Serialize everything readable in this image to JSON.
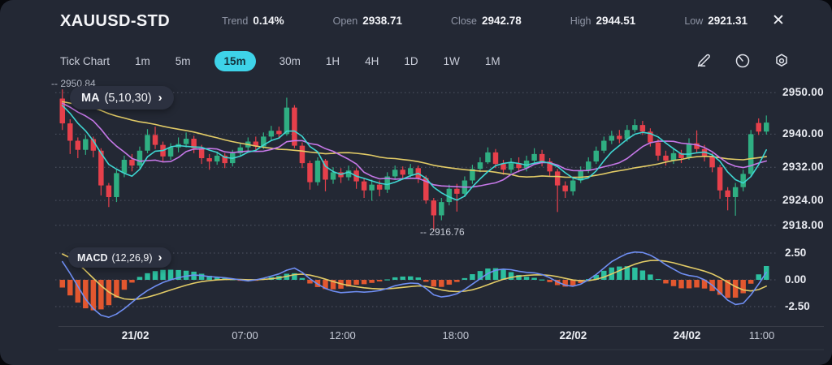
{
  "header": {
    "title": "XAUUSD-STD",
    "close_label": "✕",
    "stats": [
      {
        "label": "Trend",
        "value": "0.14%"
      },
      {
        "label": "Open",
        "value": "2938.71"
      },
      {
        "label": "Close",
        "value": "2942.78"
      },
      {
        "label": "High",
        "value": "2944.51"
      },
      {
        "label": "Low",
        "value": "2921.31"
      }
    ]
  },
  "toolbar": {
    "timeframes": [
      {
        "label": "Tick Chart",
        "active": false
      },
      {
        "label": "1m",
        "active": false
      },
      {
        "label": "5m",
        "active": false
      },
      {
        "label": "15m",
        "active": true
      },
      {
        "label": "30m",
        "active": false
      },
      {
        "label": "1H",
        "active": false
      },
      {
        "label": "4H",
        "active": false
      },
      {
        "label": "1D",
        "active": false
      },
      {
        "label": "1W",
        "active": false
      },
      {
        "label": "1M",
        "active": false
      }
    ],
    "chevron": "›"
  },
  "chart_data": {
    "type": "candlestick",
    "symbol": "XAUUSD-STD",
    "interval": "15m",
    "overlays": {
      "ma_label": "MA",
      "ma_params": "(5,10,30)",
      "ma_periods": [
        5,
        10,
        30
      ],
      "warmup_level": 2948
    },
    "annotations": {
      "high": "-- 2950.84",
      "low": "-- 2916.76"
    },
    "price_axis_ticks": [
      {
        "value": 2950,
        "label": "2950.00"
      },
      {
        "value": 2940,
        "label": "2940.00"
      },
      {
        "value": 2932,
        "label": "2932.00"
      },
      {
        "value": 2924,
        "label": "2924.00"
      },
      {
        "value": 2918,
        "label": "2918.00"
      }
    ],
    "time_axis_ticks": [
      {
        "label": "21/02",
        "pos": 0.108,
        "bold": true
      },
      {
        "label": "07:00",
        "pos": 0.262,
        "bold": false
      },
      {
        "label": "12:00",
        "pos": 0.399,
        "bold": false
      },
      {
        "label": "18:00",
        "pos": 0.558,
        "bold": false
      },
      {
        "label": "22/02",
        "pos": 0.723,
        "bold": true
      },
      {
        "label": "24/02",
        "pos": 0.883,
        "bold": true
      },
      {
        "label": "11:00",
        "pos": 0.988,
        "bold": false
      }
    ],
    "candles": [
      [
        2948.6,
        2950.8,
        2941.0,
        2942.6
      ],
      [
        2942.6,
        2943.6,
        2935.2,
        2938.4
      ],
      [
        2938.4,
        2939.2,
        2934.2,
        2936.2
      ],
      [
        2936.2,
        2939.8,
        2935.0,
        2938.8
      ],
      [
        2938.8,
        2939.4,
        2934.4,
        2936.0
      ],
      [
        2936.0,
        2936.6,
        2925.2,
        2927.6
      ],
      [
        2927.6,
        2928.2,
        2922.4,
        2924.8
      ],
      [
        2924.8,
        2931.4,
        2923.6,
        2930.6
      ],
      [
        2930.6,
        2934.8,
        2929.6,
        2933.8
      ],
      [
        2933.8,
        2935.2,
        2931.0,
        2932.4
      ],
      [
        2932.4,
        2937.0,
        2931.8,
        2936.0
      ],
      [
        2936.0,
        2941.2,
        2935.4,
        2939.8
      ],
      [
        2939.8,
        2941.8,
        2936.4,
        2937.4
      ],
      [
        2937.4,
        2938.2,
        2933.2,
        2934.6
      ],
      [
        2934.6,
        2937.8,
        2933.8,
        2936.8
      ],
      [
        2936.8,
        2939.2,
        2935.6,
        2937.6
      ],
      [
        2937.6,
        2940.4,
        2936.8,
        2938.9
      ],
      [
        2938.9,
        2939.6,
        2935.4,
        2936.6
      ],
      [
        2936.6,
        2937.4,
        2932.8,
        2934.2
      ],
      [
        2934.2,
        2935.2,
        2931.4,
        2933.4
      ],
      [
        2933.4,
        2935.8,
        2932.6,
        2934.8
      ],
      [
        2934.8,
        2935.4,
        2931.8,
        2933.0
      ],
      [
        2933.0,
        2936.2,
        2932.2,
        2935.4
      ],
      [
        2935.4,
        2937.9,
        2934.6,
        2936.8
      ],
      [
        2936.8,
        2939.2,
        2936.0,
        2938.2
      ],
      [
        2938.2,
        2939.4,
        2936.0,
        2937.0
      ],
      [
        2937.0,
        2940.4,
        2936.4,
        2939.4
      ],
      [
        2939.4,
        2942.0,
        2938.6,
        2940.8
      ],
      [
        2940.8,
        2941.8,
        2938.9,
        2940.0
      ],
      [
        2940.0,
        2948.8,
        2939.6,
        2946.4
      ],
      [
        2946.4,
        2947.0,
        2936.6,
        2937.2
      ],
      [
        2937.2,
        2938.0,
        2931.8,
        2933.0
      ],
      [
        2933.0,
        2933.6,
        2926.6,
        2928.4
      ],
      [
        2928.4,
        2934.4,
        2927.6,
        2933.6
      ],
      [
        2933.6,
        2934.0,
        2926.2,
        2929.0
      ],
      [
        2929.0,
        2932.0,
        2928.0,
        2930.8
      ],
      [
        2930.8,
        2931.8,
        2928.2,
        2929.6
      ],
      [
        2929.6,
        2932.4,
        2928.8,
        2931.2
      ],
      [
        2931.2,
        2931.8,
        2926.8,
        2928.6
      ],
      [
        2928.6,
        2929.4,
        2924.6,
        2926.4
      ],
      [
        2926.4,
        2929.0,
        2923.9,
        2927.8
      ],
      [
        2927.8,
        2928.8,
        2925.0,
        2926.6
      ],
      [
        2926.6,
        2930.8,
        2925.8,
        2929.8
      ],
      [
        2929.8,
        2932.4,
        2929.0,
        2931.4
      ],
      [
        2931.4,
        2932.2,
        2929.0,
        2930.2
      ],
      [
        2930.2,
        2932.8,
        2929.6,
        2931.8
      ],
      [
        2931.8,
        2932.4,
        2928.2,
        2929.4
      ],
      [
        2929.4,
        2930.0,
        2923.2,
        2924.0
      ],
      [
        2924.0,
        2924.6,
        2916.8,
        2920.4
      ],
      [
        2920.4,
        2924.6,
        2919.2,
        2923.6
      ],
      [
        2923.6,
        2927.8,
        2922.8,
        2926.8
      ],
      [
        2926.8,
        2928.0,
        2921.3,
        2925.6
      ],
      [
        2925.6,
        2929.8,
        2924.8,
        2928.8
      ],
      [
        2928.8,
        2932.6,
        2928.0,
        2931.6
      ],
      [
        2931.6,
        2934.4,
        2930.8,
        2933.2
      ],
      [
        2933.2,
        2936.8,
        2932.8,
        2935.6
      ],
      [
        2935.6,
        2936.4,
        2931.8,
        2932.8
      ],
      [
        2932.8,
        2933.8,
        2930.2,
        2931.4
      ],
      [
        2931.4,
        2934.2,
        2930.6,
        2933.0
      ],
      [
        2933.0,
        2934.4,
        2930.8,
        2931.8
      ],
      [
        2931.8,
        2934.8,
        2931.0,
        2933.6
      ],
      [
        2933.6,
        2936.6,
        2932.8,
        2935.2
      ],
      [
        2935.2,
        2936.2,
        2932.2,
        2933.4
      ],
      [
        2933.4,
        2934.2,
        2929.8,
        2931.0
      ],
      [
        2931.0,
        2931.6,
        2921.2,
        2927.6
      ],
      [
        2927.6,
        2928.6,
        2924.6,
        2926.2
      ],
      [
        2926.2,
        2929.6,
        2925.2,
        2928.8
      ],
      [
        2928.8,
        2932.2,
        2928.2,
        2931.2
      ],
      [
        2931.2,
        2934.4,
        2930.6,
        2933.4
      ],
      [
        2933.4,
        2937.0,
        2932.8,
        2936.0
      ],
      [
        2936.0,
        2939.4,
        2935.4,
        2938.4
      ],
      [
        2938.4,
        2940.8,
        2937.6,
        2939.6
      ],
      [
        2939.6,
        2941.0,
        2937.8,
        2938.8
      ],
      [
        2938.8,
        2942.2,
        2938.2,
        2941.0
      ],
      [
        2941.0,
        2943.6,
        2940.4,
        2942.2
      ],
      [
        2942.2,
        2943.2,
        2939.8,
        2940.6
      ],
      [
        2940.6,
        2941.4,
        2937.0,
        2938.0
      ],
      [
        2938.0,
        2938.8,
        2933.6,
        2934.8
      ],
      [
        2934.8,
        2936.0,
        2932.4,
        2933.6
      ],
      [
        2933.6,
        2936.4,
        2932.8,
        2935.4
      ],
      [
        2935.4,
        2936.2,
        2933.0,
        2934.2
      ],
      [
        2934.2,
        2939.0,
        2933.8,
        2937.8
      ],
      [
        2937.8,
        2940.9,
        2935.4,
        2936.4
      ],
      [
        2936.4,
        2937.4,
        2933.4,
        2934.6
      ],
      [
        2934.6,
        2935.4,
        2930.8,
        2932.0
      ],
      [
        2932.0,
        2932.6,
        2924.4,
        2926.4
      ],
      [
        2926.4,
        2927.2,
        2921.6,
        2924.8
      ],
      [
        2924.8,
        2928.2,
        2920.3,
        2927.2
      ],
      [
        2927.2,
        2931.4,
        2926.2,
        2930.4
      ],
      [
        2930.4,
        2941.0,
        2929.8,
        2940.0
      ],
      [
        2942.7,
        2943.8,
        2939.8,
        2940.6
      ],
      [
        2940.6,
        2944.5,
        2939.9,
        2942.8
      ]
    ],
    "macd": {
      "label": "MACD",
      "params": "(12,26,9)",
      "axis_ticks": [
        {
          "value": 2.5,
          "label": "2.50"
        },
        {
          "value": 0,
          "label": "0.00"
        },
        {
          "value": -2.5,
          "label": "-2.50"
        }
      ],
      "line": [
        1.7,
        0.6,
        -0.6,
        -1.8,
        -2.7,
        -3.3,
        -3.5,
        -3.2,
        -2.7,
        -2.1,
        -1.5,
        -1.0,
        -0.6,
        -0.25,
        0.0,
        0.2,
        0.35,
        0.45,
        0.4,
        0.3,
        0.25,
        0.2,
        0.1,
        0.0,
        -0.1,
        0.0,
        0.15,
        0.35,
        0.55,
        0.9,
        1.1,
        0.7,
        0.1,
        -0.4,
        -0.8,
        -1.05,
        -1.2,
        -1.15,
        -1.1,
        -1.15,
        -1.1,
        -1.0,
        -0.8,
        -0.55,
        -0.4,
        -0.3,
        -0.35,
        -0.8,
        -1.4,
        -1.6,
        -1.5,
        -1.3,
        -0.9,
        -0.4,
        0.1,
        0.6,
        0.9,
        1.0,
        0.95,
        0.8,
        0.7,
        0.65,
        0.5,
        0.2,
        -0.2,
        -0.5,
        -0.6,
        -0.4,
        0.0,
        0.5,
        1.1,
        1.7,
        2.1,
        2.45,
        2.6,
        2.55,
        2.3,
        1.9,
        1.4,
        1.0,
        0.6,
        0.4,
        0.3,
        0.0,
        -0.5,
        -1.2,
        -1.9,
        -2.3,
        -2.2,
        -1.4,
        -0.4,
        0.7
      ],
      "signal_seed": 2.6,
      "signal_smoothing": 9
    },
    "colors": {
      "up": "#2fae82",
      "down": "#e6404b",
      "macd_pos": "#2cbf9f",
      "macd_neg": "#e2572f",
      "macd_line": "#6f8ef2",
      "signal_line": "#e2cb66",
      "ma5": "#3fd6d2",
      "ma10": "#c678e8",
      "ma30": "#e2cb66",
      "accent": "#3ed3e9",
      "grid": "rgba(154,160,178,0.38)"
    }
  }
}
